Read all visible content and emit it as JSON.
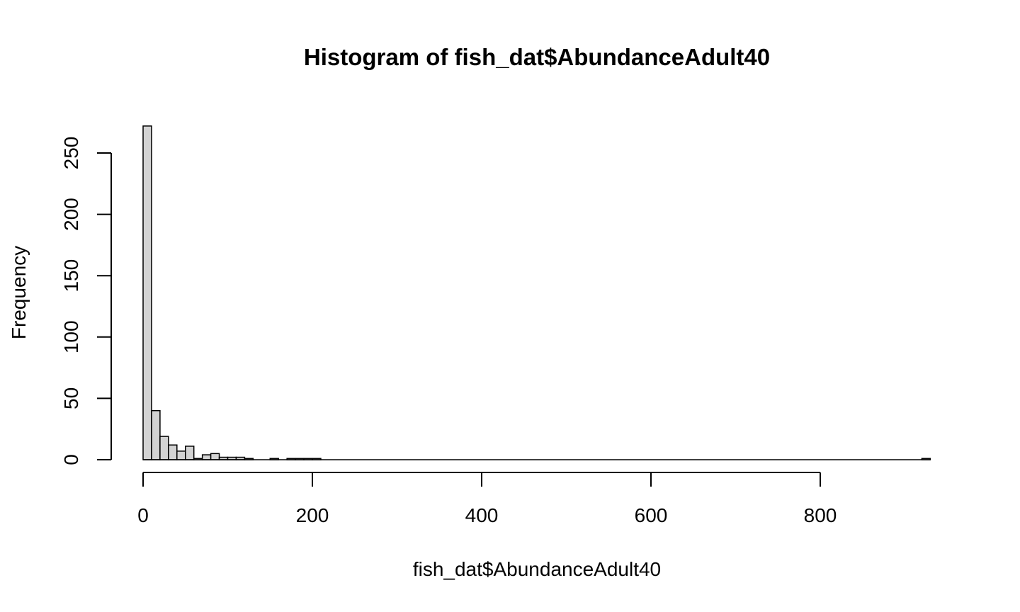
{
  "chart_data": {
    "type": "bar",
    "title": "Histogram of fish_dat$AbundanceAdult40",
    "xlabel": "fish_dat$AbundanceAdult40",
    "ylabel": "Frequency",
    "xlim": [
      0,
      930
    ],
    "ylim": [
      0,
      272
    ],
    "bin_width": 10,
    "x_ticks": [
      "0",
      "200",
      "400",
      "600",
      "800"
    ],
    "y_ticks": [
      "0",
      "50",
      "100",
      "150",
      "200",
      "250"
    ],
    "bar_color": "#d3d3d3",
    "grid": false,
    "bins": [
      {
        "x0": 0,
        "x1": 10,
        "count": 272
      },
      {
        "x0": 10,
        "x1": 20,
        "count": 40
      },
      {
        "x0": 20,
        "x1": 30,
        "count": 19
      },
      {
        "x0": 30,
        "x1": 40,
        "count": 12
      },
      {
        "x0": 40,
        "x1": 50,
        "count": 7
      },
      {
        "x0": 50,
        "x1": 60,
        "count": 11
      },
      {
        "x0": 60,
        "x1": 70,
        "count": 1
      },
      {
        "x0": 70,
        "x1": 80,
        "count": 4
      },
      {
        "x0": 80,
        "x1": 90,
        "count": 5
      },
      {
        "x0": 90,
        "x1": 100,
        "count": 2
      },
      {
        "x0": 100,
        "x1": 110,
        "count": 2
      },
      {
        "x0": 110,
        "x1": 120,
        "count": 2
      },
      {
        "x0": 120,
        "x1": 130,
        "count": 1
      },
      {
        "x0": 130,
        "x1": 140,
        "count": 0
      },
      {
        "x0": 140,
        "x1": 150,
        "count": 0
      },
      {
        "x0": 150,
        "x1": 160,
        "count": 1
      },
      {
        "x0": 160,
        "x1": 170,
        "count": 0
      },
      {
        "x0": 170,
        "x1": 180,
        "count": 1
      },
      {
        "x0": 180,
        "x1": 190,
        "count": 1
      },
      {
        "x0": 190,
        "x1": 200,
        "count": 1
      },
      {
        "x0": 200,
        "x1": 210,
        "count": 1
      },
      {
        "x0": 920,
        "x1": 930,
        "count": 1
      }
    ]
  }
}
